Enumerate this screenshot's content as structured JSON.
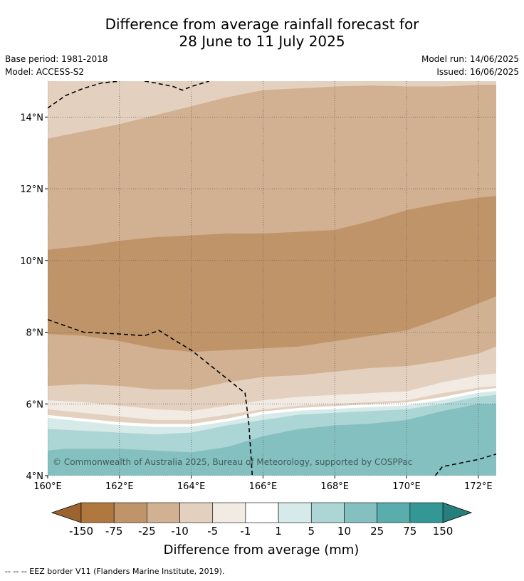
{
  "title": {
    "line1": "Difference from average rainfall forecast for",
    "line2": "28 June to 11 July 2025"
  },
  "meta": {
    "base_period": "Base period: 1981-2018",
    "model": "Model: ACCESS-S2",
    "model_run": "Model run: 14/06/2025",
    "issued": "Issued: 16/06/2025"
  },
  "copyright": "© Commonwealth of Australia 2025, Bureau of Meteorology, supported by COSPPac",
  "footer": "-- -- -- EEZ border V11 (Flanders Marine Institute, 2019).",
  "colors": {
    "n150": "#9b632f",
    "n75": "#b0773f",
    "n25": "#c09469",
    "n10": "#d1b192",
    "n5": "#e4d0bf",
    "n1": "#f2ebe3",
    "zero": "#ffffff",
    "p1": "#d5eae9",
    "p5": "#abd6d5",
    "p10": "#84c0bf",
    "p25": "#5aadad",
    "p75": "#339895",
    "p150": "#25807d"
  },
  "chart_data": {
    "type": "heatmap",
    "xlim": [
      160,
      172.5
    ],
    "ylim": [
      4,
      15
    ],
    "x_ticks": [
      {
        "value": 160,
        "label": "160°E"
      },
      {
        "value": 162,
        "label": "162°E"
      },
      {
        "value": 164,
        "label": "164°E"
      },
      {
        "value": 166,
        "label": "166°E"
      },
      {
        "value": 168,
        "label": "168°E"
      },
      {
        "value": 170,
        "label": "170°E"
      },
      {
        "value": 172,
        "label": "172°E"
      }
    ],
    "y_ticks": [
      {
        "value": 4,
        "label": "4°N"
      },
      {
        "value": 6,
        "label": "6°N"
      },
      {
        "value": 8,
        "label": "8°N"
      },
      {
        "value": 10,
        "label": "10°N"
      },
      {
        "value": 12,
        "label": "12°N"
      },
      {
        "value": 14,
        "label": "14°N"
      }
    ],
    "grid": true,
    "colorbar": {
      "label": "Difference from average (mm)",
      "tick_labels": [
        "-150",
        "-75",
        "-25",
        "-10",
        "-5",
        "-1",
        "1",
        "5",
        "10",
        "25",
        "75",
        "150"
      ],
      "colors": [
        "#b0773f",
        "#c09469",
        "#d1b192",
        "#e4d0bf",
        "#f2ebe3",
        "#ffffff",
        "#d5eae9",
        "#abd6d5",
        "#84c0bf",
        "#5aadad",
        "#339895"
      ],
      "extend_low_color": "#9b632f",
      "extend_high_color": "#25807d"
    },
    "bands": [
      {
        "color_key": "n10",
        "level": "-25 to -10 mm",
        "lower": [
          [
            160,
            6.5
          ],
          [
            161,
            6.55
          ],
          [
            162,
            6.5
          ],
          [
            163,
            6.4
          ],
          [
            164,
            6.4
          ],
          [
            165,
            6.6
          ],
          [
            166,
            6.75
          ],
          [
            167,
            6.8
          ],
          [
            168,
            6.9
          ],
          [
            169,
            7.0
          ],
          [
            170,
            7.05
          ],
          [
            171,
            7.2
          ],
          [
            172,
            7.4
          ],
          [
            172.5,
            7.6
          ]
        ],
        "upper": [
          [
            160,
            13.4
          ],
          [
            161,
            13.6
          ],
          [
            162,
            13.8
          ],
          [
            163,
            14.05
          ],
          [
            164,
            14.3
          ],
          [
            165,
            14.55
          ],
          [
            166,
            14.75
          ],
          [
            167,
            14.8
          ],
          [
            168,
            14.85
          ],
          [
            169,
            14.88
          ],
          [
            170,
            14.85
          ],
          [
            171,
            14.85
          ],
          [
            172,
            14.9
          ],
          [
            172.5,
            14.9
          ]
        ]
      },
      {
        "color_key": "n25",
        "level": "-75 to -25 mm",
        "lower": [
          [
            160,
            7.95
          ],
          [
            161,
            7.9
          ],
          [
            162,
            7.75
          ],
          [
            163,
            7.55
          ],
          [
            164,
            7.45
          ],
          [
            165,
            7.5
          ],
          [
            166,
            7.55
          ],
          [
            167,
            7.6
          ],
          [
            168,
            7.75
          ],
          [
            169,
            7.9
          ],
          [
            170,
            8.05
          ],
          [
            171,
            8.4
          ],
          [
            172,
            8.8
          ],
          [
            172.5,
            9.0
          ]
        ],
        "upper": [
          [
            160,
            10.3
          ],
          [
            161,
            10.4
          ],
          [
            162,
            10.55
          ],
          [
            163,
            10.65
          ],
          [
            164,
            10.7
          ],
          [
            165,
            10.75
          ],
          [
            166,
            10.75
          ],
          [
            167,
            10.8
          ],
          [
            168,
            10.85
          ],
          [
            169,
            11.1
          ],
          [
            170,
            11.4
          ],
          [
            171,
            11.6
          ],
          [
            172,
            11.75
          ],
          [
            172.5,
            11.8
          ]
        ]
      },
      {
        "color_key": "n5",
        "level": "-10 to -5 mm",
        "lower": [
          [
            160,
            6.1
          ],
          [
            161,
            6.05
          ],
          [
            162,
            5.95
          ],
          [
            163,
            5.85
          ],
          [
            164,
            5.8
          ],
          [
            165,
            5.95
          ],
          [
            166,
            6.1
          ],
          [
            167,
            6.2
          ],
          [
            168,
            6.25
          ],
          [
            169,
            6.3
          ],
          [
            170,
            6.35
          ],
          [
            171,
            6.6
          ],
          [
            172,
            6.8
          ],
          [
            172.5,
            6.85
          ]
        ],
        "upper": [
          [
            160,
            6.5
          ],
          [
            161,
            6.55
          ],
          [
            162,
            6.5
          ],
          [
            163,
            6.4
          ],
          [
            164,
            6.4
          ],
          [
            165,
            6.6
          ],
          [
            166,
            6.75
          ],
          [
            167,
            6.8
          ],
          [
            168,
            6.9
          ],
          [
            169,
            7.0
          ],
          [
            170,
            7.05
          ],
          [
            171,
            7.2
          ],
          [
            172,
            7.4
          ],
          [
            172.5,
            7.6
          ]
        ]
      },
      {
        "color_key": "n1",
        "level": "-5 to -1 mm",
        "lower": [
          [
            160,
            5.85
          ],
          [
            161,
            5.75
          ],
          [
            162,
            5.65
          ],
          [
            163,
            5.55
          ],
          [
            164,
            5.55
          ],
          [
            165,
            5.7
          ],
          [
            166,
            5.85
          ],
          [
            167,
            5.95
          ],
          [
            168,
            6.0
          ],
          [
            169,
            6.05
          ],
          [
            170,
            6.1
          ],
          [
            171,
            6.3
          ],
          [
            172,
            6.45
          ],
          [
            172.5,
            6.5
          ]
        ],
        "upper": [
          [
            160,
            6.1
          ],
          [
            161,
            6.05
          ],
          [
            162,
            5.95
          ],
          [
            163,
            5.85
          ],
          [
            164,
            5.8
          ],
          [
            165,
            5.95
          ],
          [
            166,
            6.1
          ],
          [
            167,
            6.2
          ],
          [
            168,
            6.25
          ],
          [
            169,
            6.3
          ],
          [
            170,
            6.35
          ],
          [
            171,
            6.6
          ],
          [
            172,
            6.8
          ],
          [
            172.5,
            6.85
          ]
        ]
      },
      {
        "color_key": "p1",
        "level": "1 to 5 mm",
        "lower": [
          [
            160,
            5.3
          ],
          [
            161,
            5.25
          ],
          [
            162,
            5.2
          ],
          [
            163,
            5.15
          ],
          [
            164,
            5.2
          ],
          [
            165,
            5.4
          ],
          [
            166,
            5.55
          ],
          [
            167,
            5.7
          ],
          [
            168,
            5.75
          ],
          [
            169,
            5.8
          ],
          [
            170,
            5.85
          ],
          [
            171,
            6.0
          ],
          [
            172,
            6.2
          ],
          [
            172.5,
            6.25
          ]
        ],
        "upper": [
          [
            160,
            5.65
          ],
          [
            161,
            5.55
          ],
          [
            162,
            5.45
          ],
          [
            163,
            5.4
          ],
          [
            164,
            5.4
          ],
          [
            165,
            5.55
          ],
          [
            166,
            5.75
          ],
          [
            167,
            5.85
          ],
          [
            168,
            5.9
          ],
          [
            169,
            5.95
          ],
          [
            170,
            6.0
          ],
          [
            171,
            6.15
          ],
          [
            172,
            6.35
          ],
          [
            172.5,
            6.4
          ]
        ]
      },
      {
        "color_key": "p5",
        "level": "5 to 10 mm",
        "lower": [
          [
            160,
            4.7
          ],
          [
            160.5,
            4.75
          ],
          [
            161,
            4.75
          ],
          [
            162,
            4.75
          ],
          [
            163,
            4.7
          ],
          [
            164,
            4.65
          ],
          [
            165,
            4.8
          ],
          [
            166,
            5.1
          ],
          [
            167,
            5.3
          ],
          [
            168,
            5.4
          ],
          [
            169,
            5.45
          ],
          [
            170,
            5.55
          ],
          [
            171,
            5.8
          ],
          [
            172,
            6.0
          ],
          [
            172.5,
            6.0
          ]
        ],
        "upper": [
          [
            160,
            5.3
          ],
          [
            161,
            5.25
          ],
          [
            162,
            5.2
          ],
          [
            163,
            5.15
          ],
          [
            164,
            5.2
          ],
          [
            165,
            5.4
          ],
          [
            166,
            5.55
          ],
          [
            167,
            5.7
          ],
          [
            168,
            5.75
          ],
          [
            169,
            5.8
          ],
          [
            170,
            5.85
          ],
          [
            171,
            6.0
          ],
          [
            172,
            6.2
          ],
          [
            172.5,
            6.25
          ]
        ]
      },
      {
        "color_key": "p10",
        "level": "10 to 25 mm",
        "lower": [
          [
            160,
            4
          ],
          [
            172.5,
            4
          ]
        ],
        "upper": [
          [
            160,
            4.7
          ],
          [
            160.5,
            4.75
          ],
          [
            161,
            4.75
          ],
          [
            162,
            4.75
          ],
          [
            163,
            4.7
          ],
          [
            164,
            4.65
          ],
          [
            165,
            4.8
          ],
          [
            166,
            5.1
          ],
          [
            167,
            5.3
          ],
          [
            168,
            5.4
          ],
          [
            169,
            5.45
          ],
          [
            170,
            5.55
          ],
          [
            171,
            5.8
          ],
          [
            172,
            6.0
          ],
          [
            172.5,
            6.0
          ]
        ]
      }
    ],
    "eez_borders": [
      [
        [
          160,
          14.25
        ],
        [
          160.5,
          14.6
        ],
        [
          161,
          14.8
        ],
        [
          161.5,
          14.95
        ],
        [
          162,
          15.0
        ]
      ],
      [
        [
          162.7,
          15.0
        ],
        [
          163,
          14.95
        ],
        [
          163.5,
          14.85
        ],
        [
          163.75,
          14.75
        ],
        [
          164,
          14.85
        ],
        [
          164.5,
          15.0
        ]
      ],
      [
        [
          160,
          8.35
        ],
        [
          161,
          8.0
        ],
        [
          162,
          7.95
        ],
        [
          162.7,
          7.9
        ],
        [
          163.1,
          8.05
        ],
        [
          163.5,
          7.8
        ],
        [
          164,
          7.5
        ],
        [
          164.5,
          7.1
        ],
        [
          165,
          6.7
        ],
        [
          165.5,
          6.3
        ],
        [
          165.6,
          5.5
        ],
        [
          165.65,
          4.8
        ],
        [
          165.7,
          4.0
        ]
      ],
      [
        [
          170.8,
          4.0
        ],
        [
          171,
          4.25
        ],
        [
          171.5,
          4.35
        ],
        [
          172,
          4.45
        ],
        [
          172.5,
          4.6
        ]
      ]
    ]
  }
}
